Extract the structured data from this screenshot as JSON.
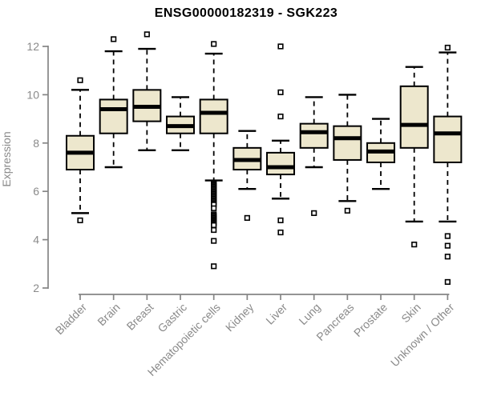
{
  "title": "ENSG00000182319 - SGK223",
  "colors": {
    "background": "#ffffff",
    "box_fill": "#ede7cd",
    "box_border": "#000000",
    "median": "#000000",
    "whisker": "#000000",
    "outlier_fill": "#ffffff",
    "axis": "#858585",
    "tick_label": "#8a8a8a",
    "title": "#000000"
  },
  "chart_data": {
    "type": "boxplot",
    "title": "ENSG00000182319 - SGK223",
    "xlabel": "",
    "ylabel": "Expression",
    "ylim": [
      2,
      12
    ],
    "yticks": [
      2,
      4,
      6,
      8,
      10,
      12
    ],
    "grid": false,
    "legend": null,
    "categories": [
      "Bladder",
      "Brain",
      "Breast",
      "Gastric",
      "Hematopoietic cells",
      "Kidney",
      "Liver",
      "Lung",
      "Pancreas",
      "Prostate",
      "Skin",
      "Unknown / Other"
    ],
    "series": [
      {
        "name": "Bladder",
        "low": 5.1,
        "q1": 6.9,
        "median": 7.6,
        "q3": 8.3,
        "high": 10.2,
        "outliers": [
          10.6,
          4.8
        ]
      },
      {
        "name": "Brain",
        "low": 7.0,
        "q1": 8.4,
        "median": 9.4,
        "q3": 9.8,
        "high": 11.8,
        "outliers": [
          12.3
        ]
      },
      {
        "name": "Breast",
        "low": 7.7,
        "q1": 8.9,
        "median": 9.5,
        "q3": 10.2,
        "high": 11.9,
        "outliers": [
          12.5
        ]
      },
      {
        "name": "Gastric",
        "low": 7.7,
        "q1": 8.4,
        "median": 8.7,
        "q3": 9.1,
        "high": 9.9,
        "outliers": []
      },
      {
        "name": "Hematopoietic cells",
        "low": 6.45,
        "q1": 8.4,
        "median": 9.25,
        "q3": 9.8,
        "high": 11.7,
        "outliers": [
          12.1,
          6.35,
          6.3,
          6.25,
          6.2,
          6.15,
          6.1,
          6.05,
          6.0,
          5.95,
          5.9,
          5.85,
          5.8,
          5.75,
          5.7,
          5.65,
          5.6,
          5.55,
          5.5,
          5.45,
          5.3,
          5.05,
          5.0,
          4.95,
          4.9,
          4.85,
          4.8,
          4.75,
          4.7,
          4.65,
          4.6,
          4.4,
          3.95,
          2.9
        ]
      },
      {
        "name": "Kidney",
        "low": 6.1,
        "q1": 6.9,
        "median": 7.3,
        "q3": 7.8,
        "high": 8.5,
        "outliers": [
          4.9
        ]
      },
      {
        "name": "Liver",
        "low": 5.7,
        "q1": 6.7,
        "median": 7.0,
        "q3": 7.6,
        "high": 8.1,
        "outliers": [
          12.0,
          10.1,
          9.1,
          4.8,
          4.3
        ]
      },
      {
        "name": "Lung",
        "low": 7.0,
        "q1": 7.8,
        "median": 8.45,
        "q3": 8.8,
        "high": 9.9,
        "outliers": [
          5.1
        ]
      },
      {
        "name": "Pancreas",
        "low": 5.6,
        "q1": 7.3,
        "median": 8.2,
        "q3": 8.7,
        "high": 10.0,
        "outliers": [
          5.2
        ]
      },
      {
        "name": "Prostate",
        "low": 6.1,
        "q1": 7.2,
        "median": 7.65,
        "q3": 8.0,
        "high": 9.0,
        "outliers": []
      },
      {
        "name": "Skin",
        "low": 4.75,
        "q1": 7.8,
        "median": 8.75,
        "q3": 10.35,
        "high": 11.15,
        "outliers": [
          3.8
        ]
      },
      {
        "name": "Unknown / Other",
        "low": 4.75,
        "q1": 7.2,
        "median": 8.4,
        "q3": 9.1,
        "high": 11.75,
        "outliers": [
          11.95,
          4.15,
          3.75,
          3.3,
          2.25
        ]
      }
    ]
  }
}
